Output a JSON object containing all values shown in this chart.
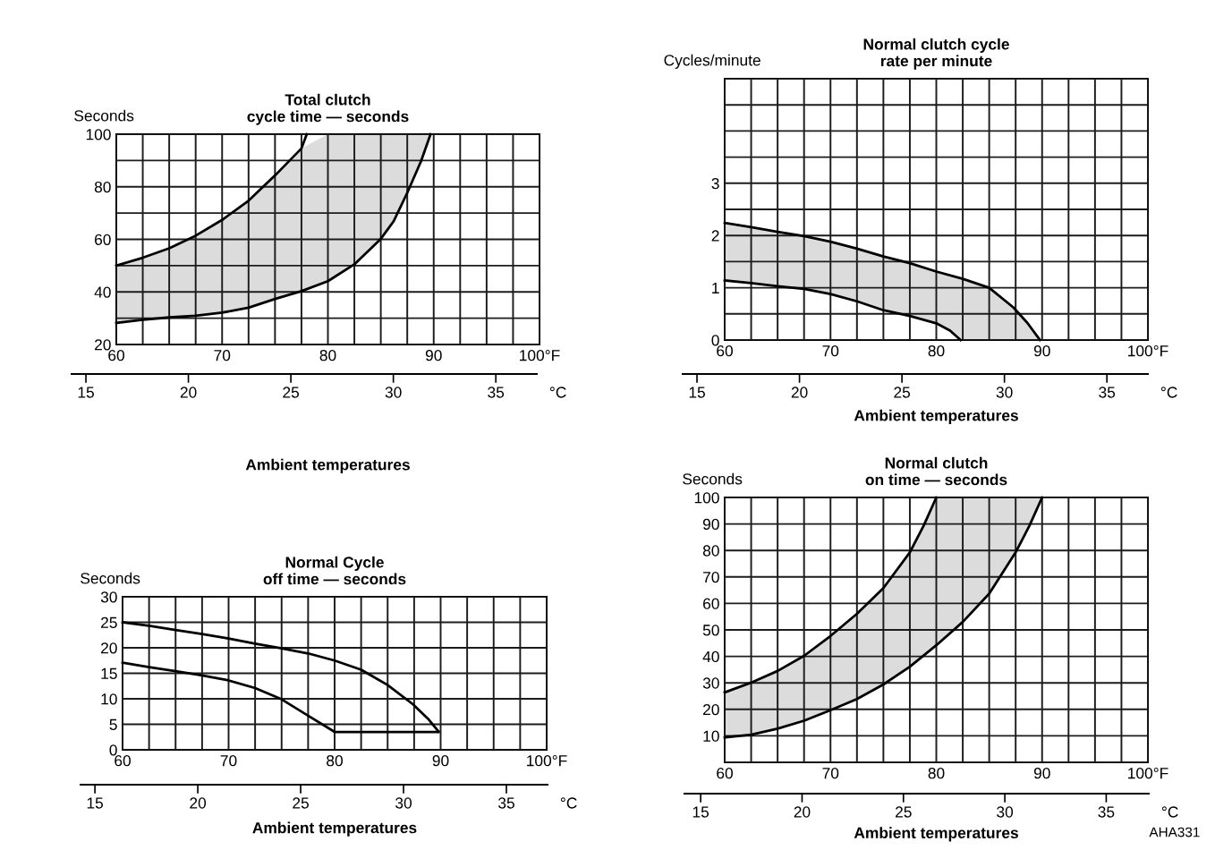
{
  "chart_data": [
    {
      "type": "line",
      "title": "Total clutch\ncycle time — seconds",
      "ylabel": "Seconds",
      "xlabel": "Ambient temperatures",
      "x2label": "°C",
      "grid": true,
      "xlim": [
        60,
        100
      ],
      "xticks": [
        60,
        {
          "value": 62.5,
          "label": null
        },
        {
          "value": 65,
          "label": null
        },
        {
          "value": 67.5,
          "label": null
        },
        70,
        {
          "value": 72.5,
          "label": null
        },
        {
          "value": 75,
          "label": null
        },
        {
          "value": 77.5,
          "label": null
        },
        80,
        {
          "value": 82.5,
          "label": null
        },
        {
          "value": 85,
          "label": null
        },
        {
          "value": 87.5,
          "label": null
        },
        90,
        {
          "value": 92.5,
          "label": null
        },
        {
          "value": 95,
          "label": null
        },
        {
          "value": 97.5,
          "label": null
        },
        {
          "value": 100,
          "label": "100°F"
        }
      ],
      "ylim": [
        20,
        100
      ],
      "yticks": [
        20,
        {
          "value": 30,
          "label": null
        },
        40,
        {
          "value": 50,
          "label": null
        },
        60,
        {
          "value": 70,
          "label": null
        },
        80,
        {
          "value": 90,
          "label": null
        },
        100
      ],
      "x2lim": [
        14.3,
        37.0
      ],
      "x2ticks": [
        15,
        20,
        25,
        30,
        35
      ],
      "series": [
        {
          "color": "#000000",
          "x": [
            60,
            62.5,
            65,
            67.5,
            70,
            72.5,
            75,
            77.5,
            78
          ],
          "values": [
            50,
            53,
            56.6,
            61.4,
            67.4,
            74.7,
            84.3,
            94.6,
            100
          ]
        },
        {
          "color": "#000000",
          "x": [
            60,
            62.5,
            65,
            67.5,
            70,
            72.5,
            75,
            77.5,
            80,
            82.5,
            85,
            86.2,
            87.5,
            88.8,
            89.7
          ],
          "values": [
            28.2,
            29.4,
            30.3,
            30.9,
            32.1,
            34,
            37.3,
            40.3,
            44.1,
            50.5,
            60.2,
            66.8,
            77.7,
            89.7,
            100
          ],
          "lower": [
            28.2,
            29.4,
            30.3,
            30.9,
            32.1,
            34,
            37.3,
            40.3,
            44.1,
            50.5,
            60.2,
            66.8,
            77.7,
            89.7,
            100
          ],
          "upper": [
            50,
            53,
            56.6,
            61.4,
            67.4,
            74.7,
            84.3,
            94.6,
            100,
            100,
            100,
            100,
            100,
            100,
            100
          ]
        }
      ]
    },
    {
      "type": "line",
      "title": "Normal clutch cycle\nrate per minute",
      "ylabel": "Cycles/minute",
      "xlabel": "Ambient temperatures",
      "x2label": "°C",
      "grid": true,
      "xlim": [
        60,
        100
      ],
      "xticks": [
        60,
        {
          "value": 62.5,
          "label": null
        },
        {
          "value": 65,
          "label": null
        },
        {
          "value": 67.5,
          "label": null
        },
        70,
        {
          "value": 72.5,
          "label": null
        },
        {
          "value": 75,
          "label": null
        },
        {
          "value": 77.5,
          "label": null
        },
        80,
        {
          "value": 82.5,
          "label": null
        },
        {
          "value": 85,
          "label": null
        },
        {
          "value": 87.5,
          "label": null
        },
        90,
        {
          "value": 92.5,
          "label": null
        },
        {
          "value": 95,
          "label": null
        },
        {
          "value": 97.5,
          "label": null
        },
        {
          "value": 100,
          "label": "100°F"
        }
      ],
      "ylim": [
        0,
        5
      ],
      "yticks": [
        0,
        {
          "value": 0.5,
          "label": null
        },
        1,
        {
          "value": 1.5,
          "label": null
        },
        2,
        {
          "value": 2.5,
          "label": null
        },
        3,
        {
          "value": 3.5,
          "label": null
        },
        {
          "value": 4,
          "label": null
        },
        {
          "value": 4.5,
          "label": null
        },
        {
          "value": 5,
          "label": null
        }
      ],
      "x2lim": [
        14.3,
        37.0
      ],
      "x2ticks": [
        15,
        20,
        25,
        30,
        35
      ],
      "series": [
        {
          "color": "#000000",
          "x": [
            60,
            62.5,
            65,
            67.5,
            70,
            72.5,
            75,
            77.5,
            80,
            82.5,
            85,
            87.3,
            88.6,
            89.8
          ],
          "values": [
            2.24,
            2.16,
            2.07,
            1.99,
            1.88,
            1.75,
            1.6,
            1.47,
            1.31,
            1.17,
            1.0,
            0.62,
            0.33,
            0
          ],
          "lower": [
            1.14,
            1.09,
            1.03,
            0.98,
            0.88,
            0.74,
            0.57,
            0.46,
            0.32,
            0,
            0,
            0,
            0,
            0
          ],
          "upper": [
            2.24,
            2.16,
            2.07,
            1.99,
            1.88,
            1.75,
            1.6,
            1.47,
            1.31,
            1.17,
            1.0,
            0.62,
            0.33,
            0
          ]
        },
        {
          "color": "#000000",
          "x": [
            60,
            62.5,
            65,
            67.5,
            70,
            72.5,
            75,
            77.5,
            80,
            81.3,
            82.3
          ],
          "values": [
            1.14,
            1.09,
            1.03,
            0.98,
            0.88,
            0.74,
            0.57,
            0.46,
            0.32,
            0.18,
            0
          ]
        }
      ]
    },
    {
      "type": "line",
      "title": "Normal Cycle\noff time — seconds",
      "ylabel": "Seconds",
      "xlabel": "Ambient temperatures",
      "x2label": "°C",
      "grid": true,
      "xlim": [
        60,
        100
      ],
      "xticks": [
        60,
        {
          "value": 62.5,
          "label": null
        },
        {
          "value": 65,
          "label": null
        },
        {
          "value": 67.5,
          "label": null
        },
        70,
        {
          "value": 72.5,
          "label": null
        },
        {
          "value": 75,
          "label": null
        },
        {
          "value": 77.5,
          "label": null
        },
        80,
        {
          "value": 82.5,
          "label": null
        },
        {
          "value": 85,
          "label": null
        },
        {
          "value": 87.5,
          "label": null
        },
        90,
        {
          "value": 92.5,
          "label": null
        },
        {
          "value": 95,
          "label": null
        },
        {
          "value": 97.5,
          "label": null
        },
        {
          "value": 100,
          "label": "100°F"
        }
      ],
      "ylim": [
        0,
        30
      ],
      "yticks": [
        0,
        5,
        10,
        15,
        20,
        25,
        30
      ],
      "x2lim": [
        14.3,
        37.0
      ],
      "x2ticks": [
        15,
        20,
        25,
        30,
        35
      ],
      "series": [
        {
          "color": "#000000",
          "x": [
            60,
            62.5,
            65,
            67.5,
            70,
            72.5,
            75,
            77.5,
            80,
            82.5,
            85,
            87.4,
            88.8,
            89.8
          ],
          "values": [
            25,
            24.3,
            23.5,
            22.7,
            21.8,
            20.8,
            19.9,
            18.9,
            17.5,
            15.7,
            12.7,
            8.9,
            6.1,
            3.6
          ]
        },
        {
          "color": "#000000",
          "x": [
            60,
            62.5,
            65,
            67.5,
            70,
            72.5,
            75,
            77.5,
            80,
            89.8
          ],
          "values": [
            17.1,
            16.2,
            15.4,
            14.6,
            13.6,
            12.1,
            9.9,
            6.7,
            3.5,
            3.5
          ]
        }
      ]
    },
    {
      "type": "line",
      "title": "Normal clutch\non time — seconds",
      "ylabel": "Seconds",
      "xlabel": "Ambient temperatures",
      "x2label": "°C",
      "grid": true,
      "annotations": [
        "AHA331"
      ],
      "xlim": [
        60,
        100
      ],
      "xticks": [
        60,
        {
          "value": 62.5,
          "label": null
        },
        {
          "value": 65,
          "label": null
        },
        {
          "value": 67.5,
          "label": null
        },
        70,
        {
          "value": 72.5,
          "label": null
        },
        {
          "value": 75,
          "label": null
        },
        {
          "value": 77.5,
          "label": null
        },
        80,
        {
          "value": 82.5,
          "label": null
        },
        {
          "value": 85,
          "label": null
        },
        {
          "value": 87.5,
          "label": null
        },
        90,
        {
          "value": 92.5,
          "label": null
        },
        {
          "value": 95,
          "label": null
        },
        {
          "value": 97.5,
          "label": null
        },
        {
          "value": 100,
          "label": "100°F"
        }
      ],
      "ylim": [
        0,
        100
      ],
      "yticks": [
        {
          "value": 0,
          "label": null
        },
        10,
        20,
        30,
        40,
        50,
        60,
        70,
        80,
        90,
        100
      ],
      "x2lim": [
        14.2,
        37.1
      ],
      "x2ticks": [
        15,
        20,
        25,
        30,
        35
      ],
      "series": [
        {
          "color": "#000000",
          "x": [
            60,
            62.5,
            65,
            67.5,
            70,
            72.5,
            75,
            77.5,
            78.8,
            80
          ],
          "values": [
            26.4,
            30.1,
            34.5,
            40.2,
            47.7,
            56.1,
            65.8,
            79.3,
            89.3,
            100
          ]
        },
        {
          "color": "#000000",
          "x": [
            60,
            62.5,
            65,
            67.5,
            70,
            72.5,
            75,
            77.5,
            80,
            82.5,
            85,
            87.5,
            88.8,
            90
          ],
          "values": [
            9.4,
            10.4,
            12.7,
            15.7,
            19.7,
            23.9,
            29.4,
            36.1,
            44.2,
            53,
            63.7,
            79.3,
            89.3,
            100
          ],
          "lower": [
            9.4,
            10.4,
            12.7,
            15.7,
            19.7,
            23.9,
            29.4,
            36.1,
            44.2,
            53,
            63.7,
            79.3,
            89.3,
            100
          ],
          "upper": [
            26.4,
            30.1,
            34.5,
            40.2,
            47.7,
            56.1,
            65.8,
            79.3,
            100,
            100,
            100,
            100,
            100,
            100
          ]
        }
      ]
    }
  ]
}
